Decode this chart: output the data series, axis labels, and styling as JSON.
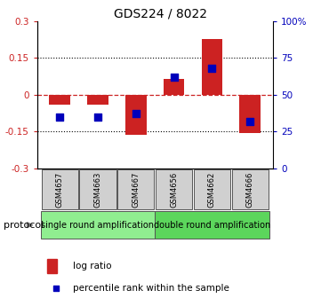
{
  "title": "GDS224 / 8022",
  "samples": [
    "GSM4657",
    "GSM4663",
    "GSM4667",
    "GSM4656",
    "GSM4662",
    "GSM4666"
  ],
  "log_ratio": [
    -0.04,
    -0.04,
    -0.165,
    0.065,
    0.225,
    -0.155
  ],
  "percentile_rank": [
    35,
    35,
    37,
    62,
    68,
    32
  ],
  "ylim_left": [
    -0.3,
    0.3
  ],
  "ylim_right": [
    0,
    100
  ],
  "yticks_left": [
    -0.3,
    -0.15,
    0,
    0.15,
    0.3
  ],
  "yticks_right": [
    0,
    25,
    50,
    75,
    100
  ],
  "ytick_labels_left": [
    "-0.3",
    "-0.15",
    "0",
    "0.15",
    "0.3"
  ],
  "ytick_labels_right": [
    "0",
    "25",
    "50",
    "75",
    "100%"
  ],
  "group1_label": "single round amplification",
  "group2_label": "double round amplification",
  "group1_color": "#90EE90",
  "group2_color": "#5CD65C",
  "group1_samples": 3,
  "group2_samples": 3,
  "bar_color": "#CC2222",
  "dot_color": "#0000BB",
  "zero_line_color": "#CC2222",
  "bg_color": "#FFFFFF",
  "protocol_label": "protocol",
  "legend_log_ratio": "log ratio",
  "legend_percentile": "percentile rank within the sample",
  "bar_width": 0.55,
  "title_fontsize": 10,
  "tick_fontsize": 7.5,
  "sample_fontsize": 6,
  "proto_fontsize": 7,
  "legend_fontsize": 7.5
}
